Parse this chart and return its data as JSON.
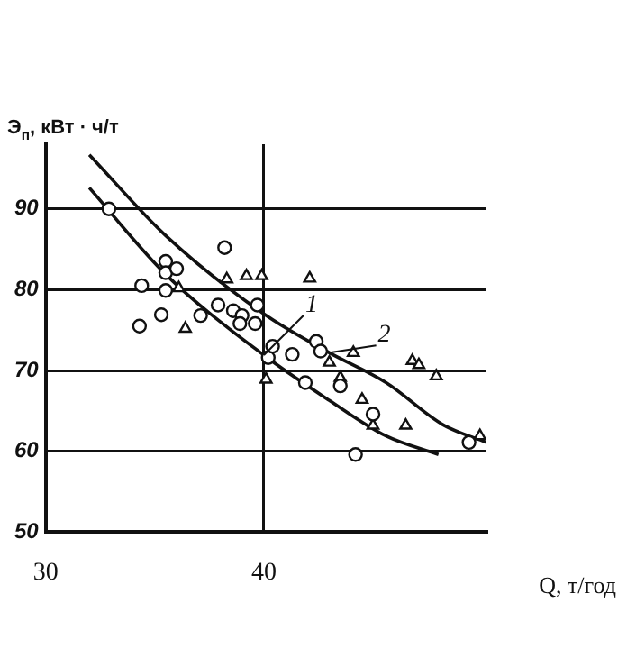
{
  "chart_data": {
    "type": "scatter",
    "xlabel": "Q, т/год",
    "ylabel": "Э$_{п}$, кВт · ч/т",
    "xlim": [
      30,
      50.2
    ],
    "ylim": [
      50,
      98
    ],
    "xticks": [
      30,
      40
    ],
    "yticks": [
      50,
      60,
      70,
      80,
      90
    ],
    "grid": true,
    "legend": false,
    "series": [
      {
        "type": "scatter",
        "marker": "circle",
        "color": "#111111",
        "x": [
          32.9,
          34.4,
          34.3,
          35.5,
          35.5,
          35.5,
          36.0,
          35.3,
          37.1,
          37.9,
          38.2,
          38.6,
          39.0,
          38.9,
          39.7,
          39.6,
          40.2,
          40.4,
          41.3,
          41.9,
          42.4,
          42.6,
          43.5,
          44.2,
          45.0,
          49.4
        ],
        "values": [
          90,
          80.5,
          75.5,
          83.5,
          82.1,
          79.9,
          82.6,
          76.9,
          76.8,
          78.1,
          85.2,
          77.4,
          76.8,
          75.8,
          78.1,
          75.8,
          71.6,
          73.0,
          72.0,
          68.5,
          73.6,
          72.4,
          68.1,
          59.6,
          64.6,
          61.1
        ]
      },
      {
        "type": "scatter",
        "marker": "triangle",
        "color": "#111111",
        "x": [
          36.1,
          36.4,
          38.3,
          39.2,
          39.9,
          40.1,
          42.1,
          43.0,
          43.5,
          44.1,
          44.5,
          45.0,
          46.5,
          46.8,
          47.1,
          47.9,
          49.9
        ],
        "values": [
          80.2,
          75.2,
          81.3,
          81.7,
          81.7,
          68.9,
          81.4,
          71.0,
          69.1,
          72.2,
          66.4,
          63.2,
          63.2,
          71.2,
          70.7,
          69.3,
          61.9
        ]
      },
      {
        "type": "line",
        "marker": "none",
        "color": "#111111",
        "x": [
          32.0,
          35.5,
          40.0,
          43.0,
          45.6,
          48.0
        ],
        "values": [
          92.6,
          81.9,
          71.9,
          66.3,
          61.9,
          59.6
        ]
      },
      {
        "type": "line",
        "marker": "none",
        "color": "#111111",
        "x": [
          32.0,
          35.5,
          40.0,
          43.0,
          45.6,
          48.2,
          50.2
        ],
        "values": [
          96.7,
          86.7,
          77.0,
          72.2,
          68.5,
          63.3,
          61.1
        ]
      }
    ],
    "annotations": [
      {
        "text": "1",
        "x": 40.0,
        "y": 71.9
      },
      {
        "text": "2",
        "x": 43.0,
        "y": 72.2
      }
    ]
  }
}
